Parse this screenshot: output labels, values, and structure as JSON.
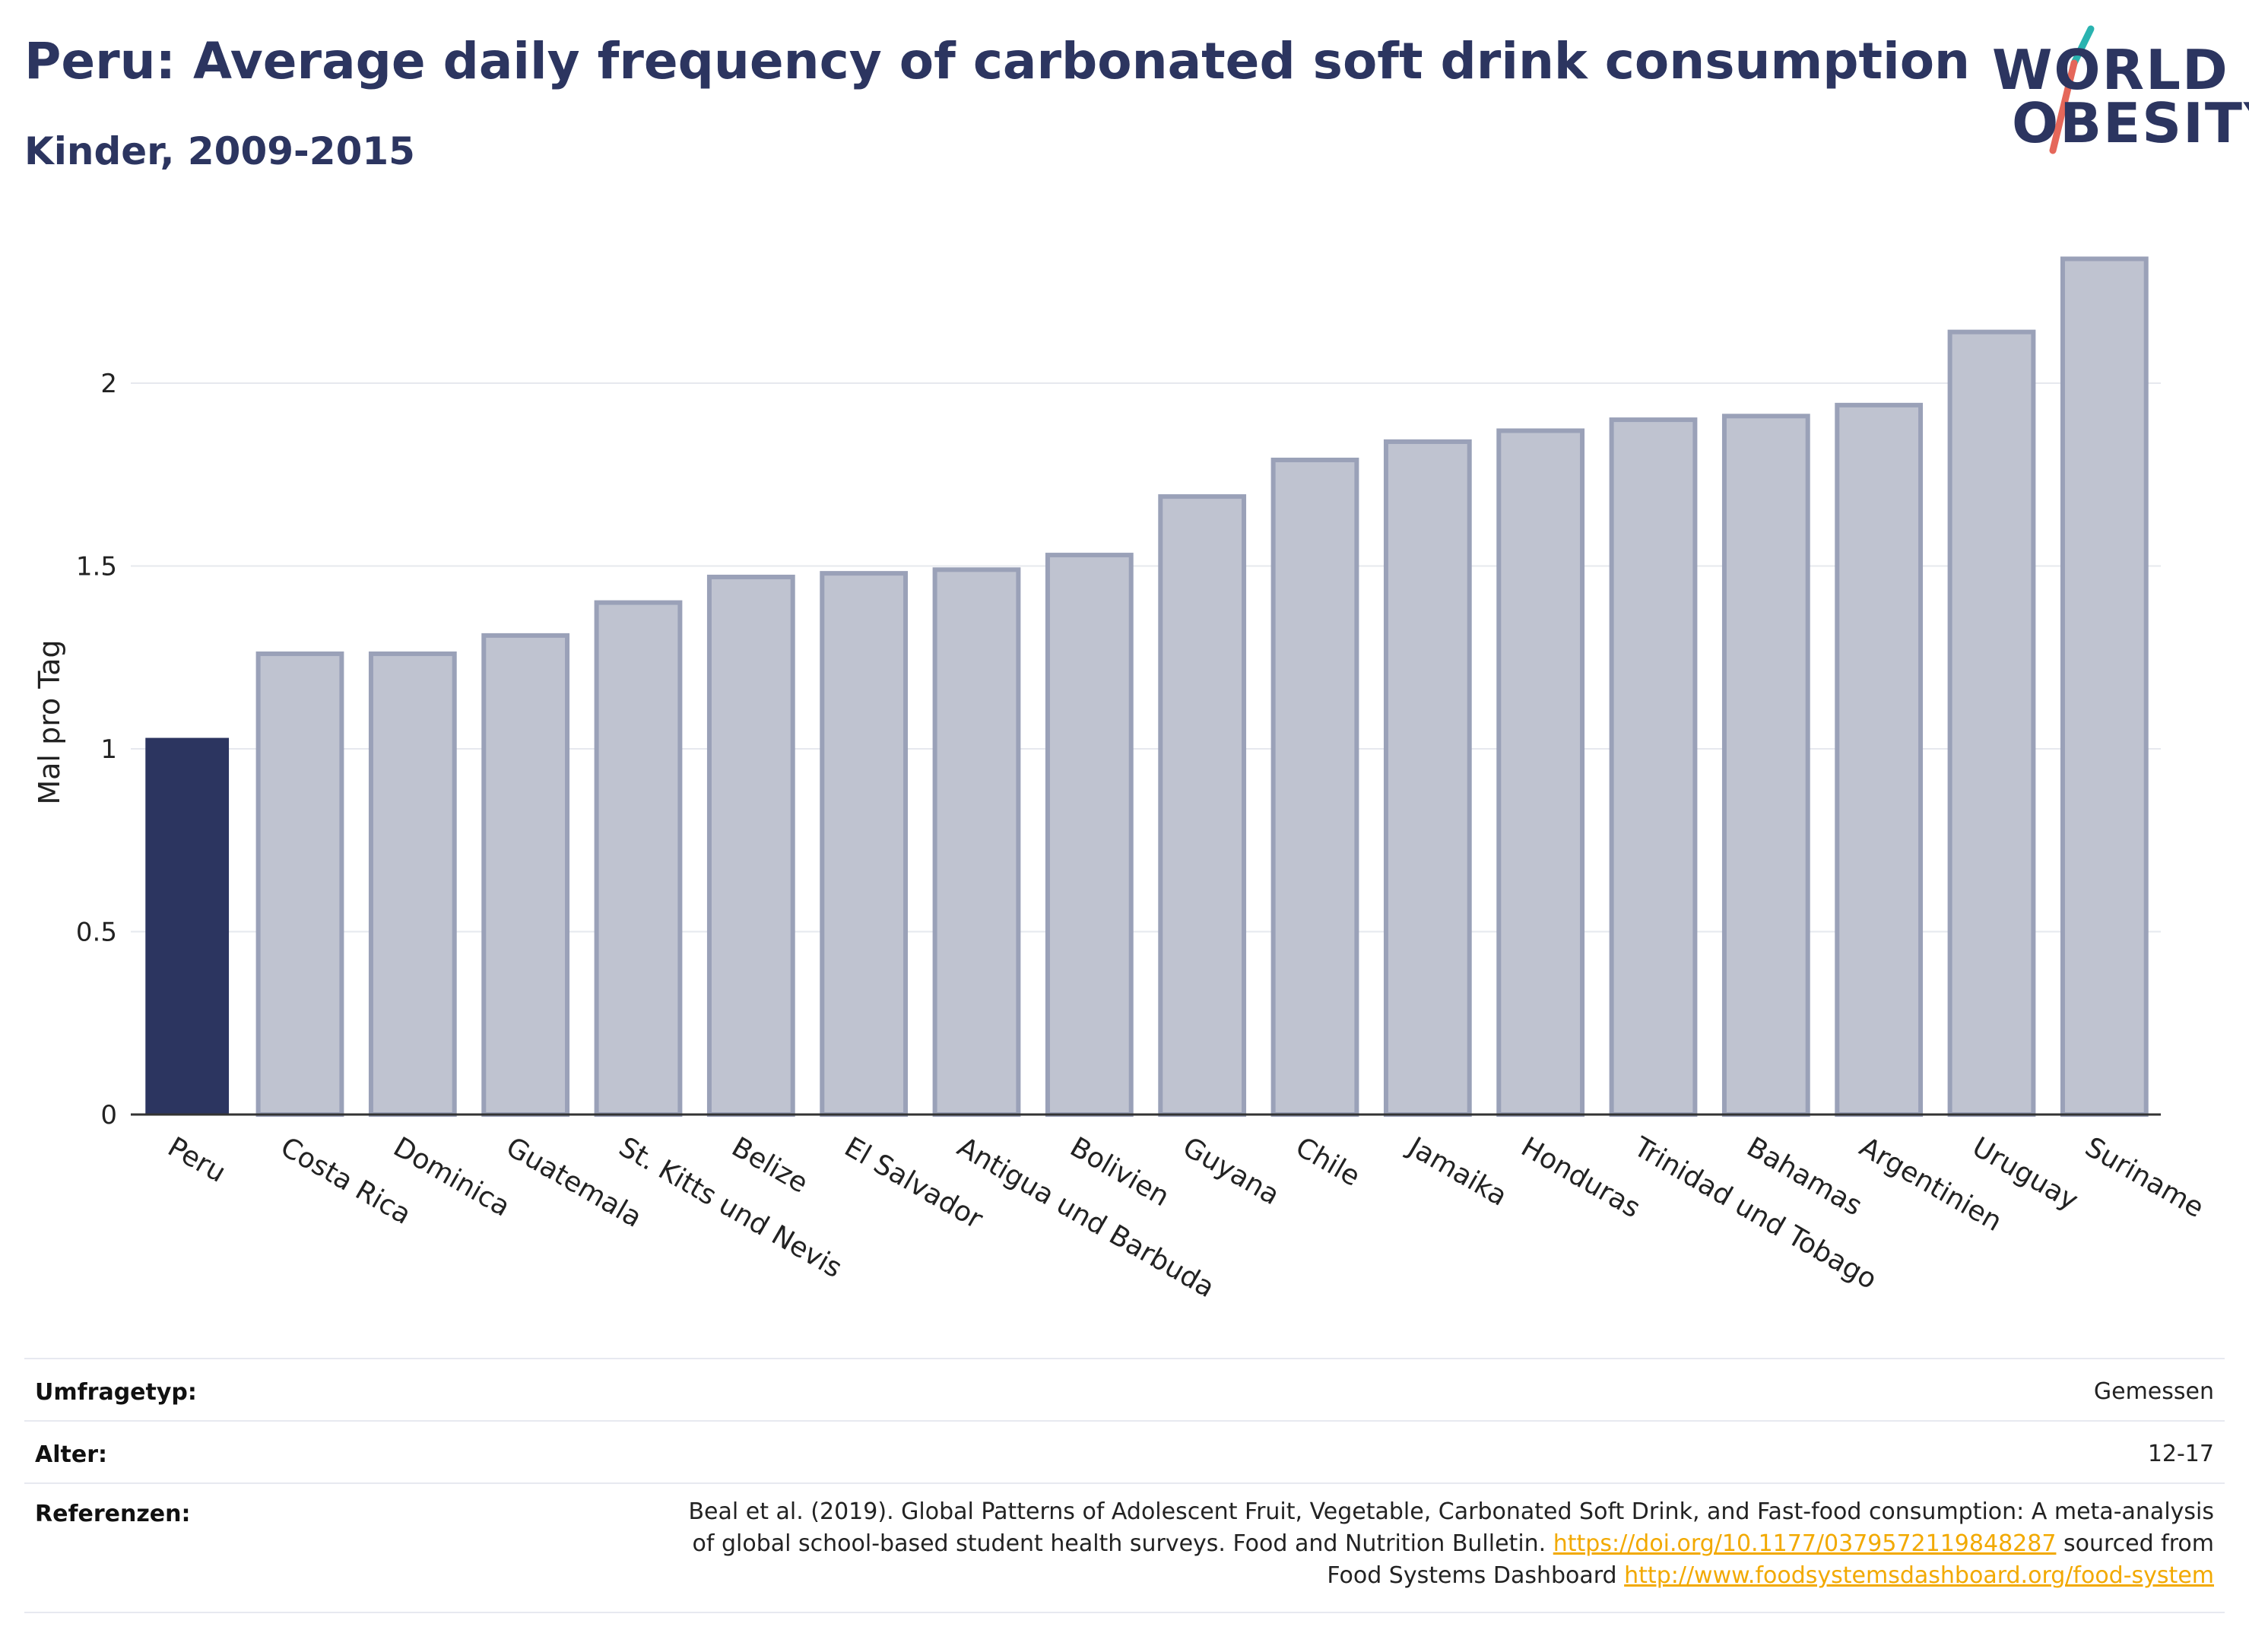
{
  "header": {
    "title": "Peru: Average daily frequency of carbonated soft drink consumption",
    "subtitle": "Kinder, 2009-2015"
  },
  "logo": {
    "line1": "WORLD",
    "line2": "OBESITY",
    "accent_teal": "#2ab3b0",
    "accent_red": "#e5675a"
  },
  "colors": {
    "highlight_bar": "#2c3560",
    "other_bar_fill": "#bfc3d0",
    "other_bar_stroke": "#9aa1b8",
    "text_dark": "#2c3560",
    "link": "#f2a900"
  },
  "chart_data": {
    "type": "bar",
    "title": "Peru: Average daily frequency of carbonated soft drink consumption",
    "subtitle": "Kinder, 2009-2015",
    "ylabel": "Mal pro Tag",
    "xlabel": "",
    "ylim": [
      0,
      2.45
    ],
    "yticks": [
      0,
      0.5,
      1,
      1.5,
      2
    ],
    "ytick_labels": [
      "0",
      "0.5",
      "1",
      "1.5",
      "2"
    ],
    "grid": true,
    "highlight": "Peru",
    "categories": [
      "Peru",
      "Costa Rica",
      "Dominica",
      "Guatemala",
      "St. Kitts und Nevis",
      "Belize",
      "El Salvador",
      "Antigua und Barbuda",
      "Bolivien",
      "Guyana",
      "Chile",
      "Jamaika",
      "Honduras",
      "Trinidad und Tobago",
      "Bahamas",
      "Argentinien",
      "Uruguay",
      "Suriname"
    ],
    "values": [
      1.03,
      1.26,
      1.26,
      1.31,
      1.4,
      1.47,
      1.48,
      1.49,
      1.53,
      1.69,
      1.79,
      1.84,
      1.87,
      1.9,
      1.91,
      1.94,
      2.14,
      2.34
    ]
  },
  "meta": {
    "rows": [
      {
        "key": "Umfragetyp:",
        "value": "Gemessen"
      },
      {
        "key": "Alter:",
        "value": "12-17"
      }
    ],
    "references": {
      "key": "Referenzen:",
      "text_1": "Beal et al. (2019). Global Patterns of Adolescent Fruit, Vegetable, Carbonated Soft Drink, and Fast-food consumption: A meta-analysis",
      "text_2": "of global school-based student health surveys. Food and Nutrition Bulletin.",
      "link_1": "https://doi.org/10.1177/0379572119848287",
      "text_3": "sourced from",
      "text_4": "Food Systems Dashboard",
      "link_2": "http://www.foodsystemsdashboard.org/food-system"
    }
  }
}
